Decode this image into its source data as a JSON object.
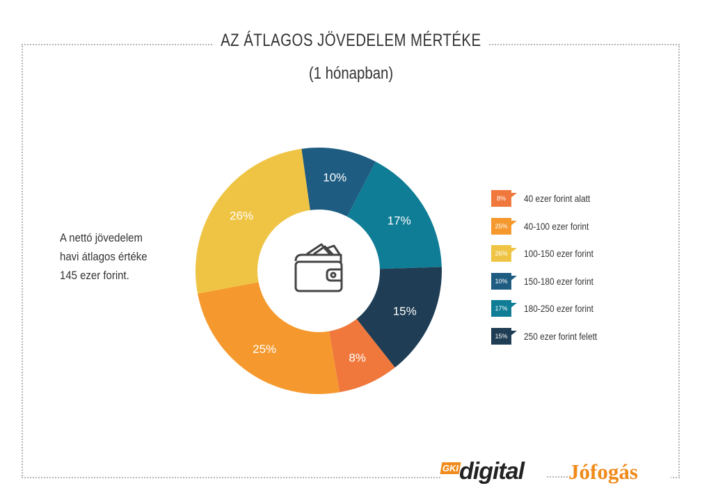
{
  "header": {
    "title": "AZ ÁTLAGOS JÖVEDELEM MÉRTÉKE",
    "subtitle": "(1 hónapban)"
  },
  "note": {
    "line1": "A nettó jövedelem",
    "line2": "havi átlagos értéke",
    "line3": "145 ezer forint."
  },
  "center_icon": "wallet-icon",
  "chart_data": {
    "type": "donut",
    "title": "AZ ÁTLAGOS JÖVEDELEM MÉRTÉKE",
    "subtitle": "(1 hónapban)",
    "unit": "%",
    "slices": [
      {
        "label": "10%",
        "value": 10,
        "color": "#1f5c82"
      },
      {
        "label": "17%",
        "value": 17,
        "color": "#0f7d96"
      },
      {
        "label": "15%",
        "value": 15,
        "color": "#1f3d54"
      },
      {
        "label": "8%",
        "value": 8,
        "color": "#f0783c"
      },
      {
        "label": "25%",
        "value": 25,
        "color": "#f5992e"
      },
      {
        "label": "26%",
        "value": 26,
        "color": "#efc444"
      }
    ]
  },
  "legend": [
    {
      "badge": "8%",
      "label": "40 ezer forint alatt",
      "color": "#f0783c"
    },
    {
      "badge": "25%",
      "label": "40-100 ezer forint",
      "color": "#f5992e"
    },
    {
      "badge": "26%",
      "label": "100-150 ezer forint",
      "color": "#efc444"
    },
    {
      "badge": "10%",
      "label": "150-180 ezer forint",
      "color": "#1f5c82"
    },
    {
      "badge": "17%",
      "label": "180-250 ezer forint",
      "color": "#0f7d96"
    },
    {
      "badge": "15%",
      "label": "250 ezer forint felett",
      "color": "#1f3d54"
    }
  ],
  "logos": {
    "gki": "GKI",
    "digital": "digital",
    "jofogas": "Jófogás"
  }
}
